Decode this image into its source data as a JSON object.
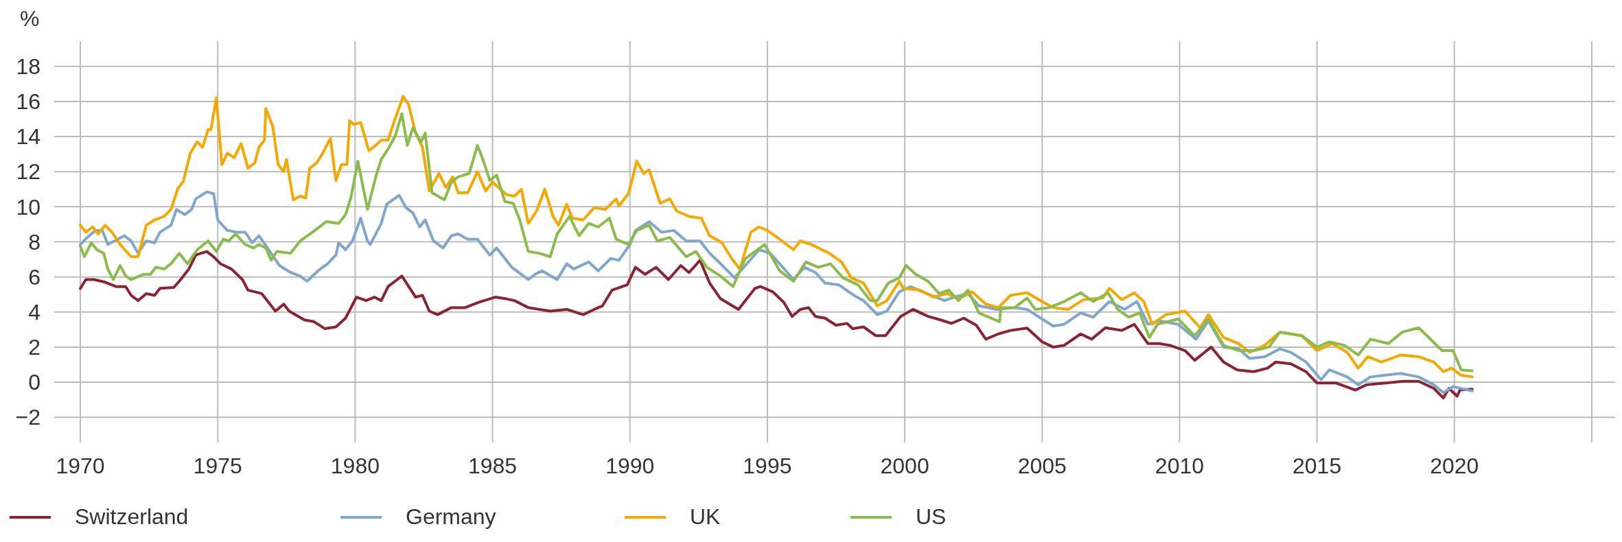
{
  "chart_data": {
    "type": "line",
    "ylabel": "%",
    "xlim": [
      1969.05,
      2025.85
    ],
    "ylim": [
      -3.44,
      19.44
    ],
    "xticks": [
      1970,
      1975,
      1980,
      1985,
      1990,
      1995,
      2000,
      2005,
      2010,
      2015,
      2020,
      {
        "value": 2025,
        "label": null
      }
    ],
    "yticks": [
      -2,
      0,
      2,
      4,
      6,
      8,
      10,
      12,
      14,
      16,
      18
    ],
    "grid": true,
    "legend": "bottom",
    "line_style": "solid",
    "marker": "none",
    "series": [
      {
        "name": "Switzerland",
        "color": "#8b2332",
        "x": [
          1970.0,
          1970.2,
          1970.5,
          1970.9,
          1971.3,
          1971.65,
          1971.85,
          1972.1,
          1972.4,
          1972.7,
          1972.9,
          1973.4,
          1973.6,
          1973.95,
          1974.2,
          1974.6,
          1974.85,
          1975.1,
          1975.5,
          1975.9,
          1976.1,
          1976.6,
          1976.9,
          1977.1,
          1977.4,
          1977.6,
          1978.15,
          1978.5,
          1978.9,
          1979.3,
          1979.65,
          1980.05,
          1980.4,
          1980.7,
          1980.95,
          1981.2,
          1981.45,
          1981.7,
          1981.95,
          1982.2,
          1982.45,
          1982.7,
          1983.0,
          1983.5,
          1984.0,
          1984.5,
          1985.1,
          1985.5,
          1985.8,
          1986.3,
          1987.1,
          1987.7,
          1988.3,
          1988.7,
          1989.0,
          1989.35,
          1989.9,
          1990.2,
          1990.55,
          1990.95,
          1991.4,
          1991.85,
          1992.15,
          1992.55,
          1992.9,
          1993.3,
          1993.95,
          1994.55,
          1994.75,
          1995.2,
          1995.6,
          1995.9,
          1996.2,
          1996.5,
          1996.75,
          1997.1,
          1997.5,
          1997.9,
          1998.1,
          1998.5,
          1998.95,
          1999.3,
          1999.85,
          2000.3,
          2000.85,
          2001.3,
          2001.7,
          2002.15,
          2002.6,
          2002.95,
          2003.4,
          2003.85,
          2004.45,
          2005.0,
          2005.4,
          2005.8,
          2006.4,
          2006.8,
          2007.3,
          2007.9,
          2008.35,
          2008.85,
          2009.25,
          2009.65,
          2010.2,
          2010.55,
          2011.15,
          2011.6,
          2012.1,
          2012.7,
          2013.2,
          2013.5,
          2014.05,
          2014.6,
          2015.0,
          2015.7,
          2016.4,
          2016.8,
          2017.5,
          2018.15,
          2018.7,
          2019.25,
          2019.6,
          2019.8,
          2020.1,
          2020.2,
          2020.65
        ],
        "values": [
          5.34,
          5.85,
          5.85,
          5.7,
          5.45,
          5.45,
          4.95,
          4.65,
          5.05,
          4.95,
          5.35,
          5.4,
          5.75,
          6.45,
          7.25,
          7.45,
          7.15,
          6.75,
          6.45,
          5.85,
          5.25,
          5.05,
          4.45,
          4.05,
          4.45,
          4.05,
          3.55,
          3.45,
          3.05,
          3.15,
          3.65,
          4.85,
          4.65,
          4.85,
          4.65,
          5.45,
          5.75,
          6.05,
          5.45,
          4.85,
          4.95,
          4.05,
          3.85,
          4.25,
          4.25,
          4.55,
          4.85,
          4.75,
          4.65,
          4.25,
          4.05,
          4.15,
          3.85,
          4.15,
          4.35,
          5.25,
          5.55,
          6.55,
          6.15,
          6.55,
          5.85,
          6.65,
          6.25,
          6.95,
          5.65,
          4.75,
          4.15,
          5.35,
          5.45,
          5.15,
          4.55,
          3.75,
          4.15,
          4.25,
          3.75,
          3.65,
          3.25,
          3.35,
          3.05,
          3.15,
          2.65,
          2.65,
          3.75,
          4.15,
          3.75,
          3.55,
          3.35,
          3.65,
          3.25,
          2.45,
          2.75,
          2.95,
          3.08,
          2.3,
          2.0,
          2.1,
          2.75,
          2.45,
          3.1,
          2.95,
          3.3,
          2.2,
          2.2,
          2.1,
          1.8,
          1.25,
          2.0,
          1.15,
          0.7,
          0.6,
          0.8,
          1.15,
          1.05,
          0.6,
          -0.05,
          -0.05,
          -0.45,
          -0.15,
          -0.05,
          0.05,
          0.05,
          -0.35,
          -0.9,
          -0.35,
          -0.8,
          -0.45,
          -0.4
        ]
      },
      {
        "name": "Germany",
        "color": "#7fa7cc",
        "x": [
          1970.0,
          1970.25,
          1970.55,
          1970.8,
          1971.0,
          1971.25,
          1971.6,
          1971.85,
          1972.1,
          1972.4,
          1972.7,
          1972.9,
          1973.3,
          1973.5,
          1973.8,
          1974.05,
          1974.2,
          1974.6,
          1974.85,
          1975.0,
          1975.35,
          1975.7,
          1976.0,
          1976.25,
          1976.5,
          1976.9,
          1977.25,
          1977.65,
          1978.0,
          1978.25,
          1978.65,
          1979.0,
          1979.3,
          1979.4,
          1979.65,
          1979.9,
          1980.2,
          1980.45,
          1980.55,
          1980.95,
          1981.15,
          1981.6,
          1981.85,
          1982.1,
          1982.35,
          1982.55,
          1982.85,
          1983.2,
          1983.5,
          1983.75,
          1984.1,
          1984.45,
          1984.9,
          1985.15,
          1985.45,
          1985.7,
          1986.3,
          1986.55,
          1986.8,
          1987.35,
          1987.7,
          1987.95,
          1988.5,
          1988.85,
          1989.3,
          1989.6,
          1990.0,
          1990.2,
          1990.7,
          1991.15,
          1991.6,
          1992.05,
          1992.55,
          1992.9,
          1993.3,
          1993.8,
          1994.2,
          1994.7,
          1995.1,
          1995.45,
          1995.95,
          1996.35,
          1996.75,
          1997.1,
          1997.6,
          1998.15,
          1998.5,
          1999.0,
          1999.35,
          1999.8,
          2000.2,
          2000.8,
          2001.45,
          2001.8,
          2002.3,
          2002.7,
          2003.35,
          2004.0,
          2004.45,
          2005.0,
          2005.4,
          2005.8,
          2006.4,
          2006.85,
          2007.45,
          2008.0,
          2008.45,
          2008.85,
          2009.25,
          2009.95,
          2010.6,
          2011.05,
          2011.6,
          2012.15,
          2012.55,
          2013.1,
          2013.65,
          2014.05,
          2014.6,
          2015.15,
          2015.45,
          2016.1,
          2016.5,
          2016.95,
          2017.5,
          2018.05,
          2018.7,
          2019.25,
          2019.6,
          2019.95,
          2020.65
        ],
        "values": [
          7.85,
          8.25,
          8.65,
          8.65,
          7.85,
          8.05,
          8.35,
          8.05,
          7.35,
          8.05,
          7.95,
          8.55,
          8.95,
          9.85,
          9.55,
          9.85,
          10.45,
          10.85,
          10.75,
          9.25,
          8.65,
          8.55,
          8.55,
          7.95,
          8.35,
          7.45,
          6.65,
          6.25,
          6.05,
          5.75,
          6.35,
          6.75,
          7.25,
          7.95,
          7.55,
          8.05,
          9.35,
          8.05,
          7.85,
          9.05,
          10.15,
          10.65,
          9.95,
          9.65,
          8.85,
          9.25,
          8.05,
          7.65,
          8.35,
          8.45,
          8.15,
          8.15,
          7.25,
          7.65,
          7.05,
          6.55,
          5.85,
          6.15,
          6.35,
          5.85,
          6.75,
          6.45,
          6.85,
          6.35,
          7.05,
          6.95,
          7.85,
          8.65,
          9.15,
          8.55,
          8.65,
          8.05,
          8.05,
          7.35,
          6.75,
          5.95,
          6.65,
          7.55,
          7.35,
          6.75,
          5.85,
          6.55,
          6.25,
          5.65,
          5.55,
          4.95,
          4.65,
          3.85,
          4.05,
          5.15,
          5.45,
          5.05,
          4.65,
          4.85,
          5.05,
          4.35,
          4.15,
          4.25,
          4.15,
          3.6,
          3.2,
          3.3,
          3.95,
          3.7,
          4.6,
          4.15,
          4.6,
          3.3,
          3.5,
          3.3,
          2.45,
          3.5,
          2.0,
          1.9,
          1.35,
          1.45,
          1.9,
          1.7,
          1.15,
          0.15,
          0.7,
          0.3,
          -0.15,
          0.3,
          0.4,
          0.5,
          0.3,
          -0.15,
          -0.6,
          -0.25,
          -0.5
        ]
      },
      {
        "name": "UK",
        "color": "#f5a800",
        "x": [
          1970.0,
          1970.2,
          1970.45,
          1970.65,
          1970.9,
          1971.15,
          1971.45,
          1971.85,
          1972.1,
          1972.4,
          1972.7,
          1973.05,
          1973.3,
          1973.55,
          1973.75,
          1974.0,
          1974.25,
          1974.45,
          1974.65,
          1974.75,
          1974.95,
          1975.15,
          1975.35,
          1975.6,
          1975.85,
          1976.1,
          1976.35,
          1976.5,
          1976.7,
          1976.75,
          1977.0,
          1977.2,
          1977.4,
          1977.5,
          1977.75,
          1978.0,
          1978.2,
          1978.35,
          1978.6,
          1978.8,
          1979.1,
          1979.3,
          1979.5,
          1979.7,
          1979.8,
          1979.95,
          1980.2,
          1980.5,
          1980.75,
          1980.95,
          1981.2,
          1981.45,
          1981.75,
          1981.95,
          1982.2,
          1982.45,
          1982.7,
          1983.05,
          1983.3,
          1983.55,
          1983.75,
          1984.1,
          1984.45,
          1984.75,
          1985.0,
          1985.5,
          1985.8,
          1986.05,
          1986.3,
          1986.6,
          1986.9,
          1987.2,
          1987.4,
          1987.7,
          1987.9,
          1988.3,
          1988.7,
          1989.1,
          1989.5,
          1989.6,
          1989.95,
          1990.25,
          1990.5,
          1990.7,
          1991.1,
          1991.45,
          1991.7,
          1992.15,
          1992.6,
          1992.9,
          1993.35,
          1993.7,
          1994.0,
          1994.4,
          1994.7,
          1995.0,
          1995.45,
          1995.95,
          1996.2,
          1996.6,
          1997.25,
          1997.7,
          1998.05,
          1998.5,
          1999.0,
          1999.35,
          1999.8,
          1999.95,
          2000.55,
          2001.05,
          2001.55,
          2001.95,
          2002.45,
          2002.95,
          2003.4,
          2003.85,
          2004.45,
          2005.0,
          2005.4,
          2005.95,
          2006.5,
          2007.2,
          2007.45,
          2007.9,
          2008.35,
          2008.7,
          2009.0,
          2009.5,
          2010.2,
          2010.75,
          2011.05,
          2011.6,
          2012.15,
          2012.55,
          2013.1,
          2013.65,
          2014.45,
          2015.0,
          2015.55,
          2016.1,
          2016.5,
          2016.85,
          2017.35,
          2018.05,
          2018.7,
          2019.25,
          2019.6,
          2019.9,
          2020.25,
          2020.65
        ],
        "values": [
          8.95,
          8.55,
          8.85,
          8.45,
          8.95,
          8.55,
          7.85,
          7.15,
          7.15,
          8.95,
          9.25,
          9.45,
          9.85,
          11.05,
          11.45,
          13.05,
          13.7,
          13.4,
          14.4,
          14.4,
          16.2,
          12.4,
          13.05,
          12.8,
          13.6,
          12.2,
          12.5,
          13.4,
          13.8,
          15.6,
          14.6,
          12.4,
          12.0,
          12.7,
          10.4,
          10.6,
          10.5,
          12.2,
          12.5,
          13.0,
          13.9,
          11.5,
          12.4,
          12.4,
          14.9,
          14.7,
          14.8,
          13.2,
          13.5,
          13.8,
          13.8,
          15.0,
          16.3,
          15.8,
          14.2,
          13.4,
          10.9,
          11.9,
          11.1,
          11.7,
          10.8,
          10.8,
          12.0,
          10.9,
          11.4,
          10.7,
          10.6,
          11.0,
          9.05,
          9.75,
          11.0,
          9.45,
          8.95,
          10.15,
          9.35,
          9.25,
          9.95,
          9.85,
          10.45,
          10.05,
          10.75,
          12.6,
          11.9,
          12.1,
          10.2,
          10.45,
          9.75,
          9.45,
          9.35,
          8.35,
          7.95,
          7.05,
          6.45,
          8.55,
          8.85,
          8.65,
          8.15,
          7.55,
          8.05,
          7.85,
          7.35,
          6.85,
          5.95,
          5.65,
          4.35,
          4.65,
          5.75,
          5.35,
          5.25,
          4.85,
          5.05,
          4.75,
          5.15,
          4.45,
          4.25,
          4.95,
          5.1,
          4.6,
          4.25,
          4.15,
          4.7,
          4.8,
          5.35,
          4.7,
          5.1,
          4.6,
          3.3,
          3.85,
          4.05,
          3.1,
          3.85,
          2.55,
          2.2,
          1.7,
          2.1,
          2.85,
          2.65,
          1.8,
          2.2,
          1.7,
          0.8,
          1.45,
          1.15,
          1.55,
          1.45,
          1.15,
          0.6,
          0.8,
          0.4,
          0.3
        ]
      },
      {
        "name": "US",
        "color": "#8bbc4b",
        "x": [
          1970.0,
          1970.15,
          1970.4,
          1970.6,
          1970.85,
          1971.0,
          1971.2,
          1971.45,
          1971.65,
          1971.85,
          1972.3,
          1972.55,
          1972.75,
          1973.05,
          1973.3,
          1973.6,
          1973.9,
          1974.25,
          1974.65,
          1974.95,
          1975.2,
          1975.4,
          1975.65,
          1976.0,
          1976.3,
          1976.5,
          1976.75,
          1976.95,
          1977.15,
          1977.65,
          1978.0,
          1978.45,
          1978.95,
          1979.4,
          1979.65,
          1979.85,
          1980.1,
          1980.45,
          1980.75,
          1980.95,
          1981.2,
          1981.45,
          1981.7,
          1981.9,
          1982.1,
          1982.4,
          1982.55,
          1982.8,
          1983.25,
          1983.5,
          1983.75,
          1984.15,
          1984.45,
          1984.65,
          1984.9,
          1985.15,
          1985.45,
          1985.75,
          1986.0,
          1986.3,
          1986.7,
          1987.1,
          1987.35,
          1987.8,
          1988.15,
          1988.5,
          1988.85,
          1989.25,
          1989.5,
          1989.95,
          1990.25,
          1990.7,
          1991.0,
          1991.45,
          1992.05,
          1992.4,
          1992.8,
          1993.3,
          1993.75,
          1994.2,
          1994.9,
          1995.45,
          1995.95,
          1996.4,
          1996.85,
          1997.3,
          1997.75,
          1998.3,
          1998.75,
          1999.0,
          1999.4,
          1999.8,
          2000.05,
          2000.4,
          2000.85,
          2001.25,
          2001.6,
          2001.95,
          2002.3,
          2002.7,
          2003.45,
          2003.5,
          2004.0,
          2004.45,
          2004.75,
          2005.25,
          2005.8,
          2006.4,
          2006.85,
          2007.4,
          2007.75,
          2008.15,
          2008.55,
          2008.9,
          2009.2,
          2009.95,
          2010.55,
          2011.05,
          2011.6,
          2012.15,
          2012.7,
          2013.25,
          2013.65,
          2014.45,
          2015.0,
          2015.45,
          2016.0,
          2016.5,
          2016.95,
          2017.6,
          2018.1,
          2018.7,
          2019.0,
          2019.55,
          2019.95,
          2020.25,
          2020.65
        ],
        "values": [
          7.75,
          7.15,
          7.95,
          7.55,
          7.35,
          6.45,
          5.85,
          6.65,
          6.05,
          5.85,
          6.15,
          6.15,
          6.55,
          6.45,
          6.75,
          7.35,
          6.75,
          7.55,
          8.05,
          7.45,
          8.15,
          8.05,
          8.45,
          7.85,
          7.65,
          7.85,
          7.65,
          6.95,
          7.45,
          7.35,
          8.05,
          8.55,
          9.15,
          9.05,
          9.55,
          10.55,
          12.6,
          9.85,
          11.7,
          12.7,
          13.3,
          14.0,
          15.3,
          13.5,
          14.5,
          13.7,
          14.2,
          10.8,
          10.4,
          11.4,
          11.7,
          11.9,
          13.5,
          12.7,
          11.5,
          11.8,
          10.3,
          10.2,
          9.2,
          7.45,
          7.35,
          7.15,
          8.45,
          9.45,
          8.35,
          9.05,
          8.85,
          9.35,
          8.15,
          7.85,
          8.65,
          8.95,
          8.05,
          8.25,
          7.15,
          7.45,
          6.55,
          6.05,
          5.45,
          7.05,
          7.85,
          6.35,
          5.75,
          6.85,
          6.55,
          6.75,
          5.95,
          5.55,
          4.65,
          4.65,
          5.65,
          5.95,
          6.65,
          6.15,
          5.75,
          5.05,
          5.25,
          4.65,
          5.25,
          3.95,
          3.45,
          4.25,
          4.25,
          4.8,
          4.15,
          4.25,
          4.6,
          5.1,
          4.6,
          5.1,
          4.15,
          3.7,
          3.95,
          2.55,
          3.3,
          3.6,
          2.65,
          3.6,
          2.1,
          1.8,
          1.8,
          2.0,
          2.85,
          2.65,
          2.0,
          2.3,
          2.1,
          1.55,
          2.45,
          2.2,
          2.85,
          3.1,
          2.65,
          1.8,
          1.8,
          0.7,
          0.65
        ]
      }
    ]
  }
}
